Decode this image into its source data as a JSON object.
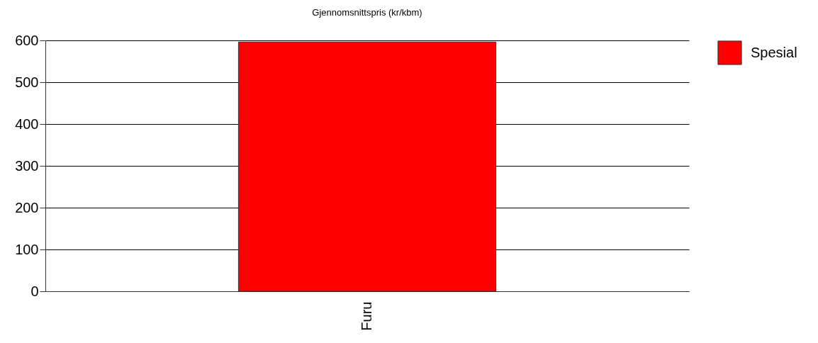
{
  "chart_data": {
    "type": "bar",
    "title": "Gjennomsnittspris (kr/kbm)",
    "categories": [
      "Furu"
    ],
    "series": [
      {
        "name": "Spesial",
        "color": "#ff0000",
        "values": [
          596
        ]
      }
    ],
    "ylim": [
      0,
      600
    ],
    "yticks": [
      0,
      100,
      200,
      300,
      400,
      500,
      600
    ],
    "grid": "y",
    "legend": "right"
  }
}
